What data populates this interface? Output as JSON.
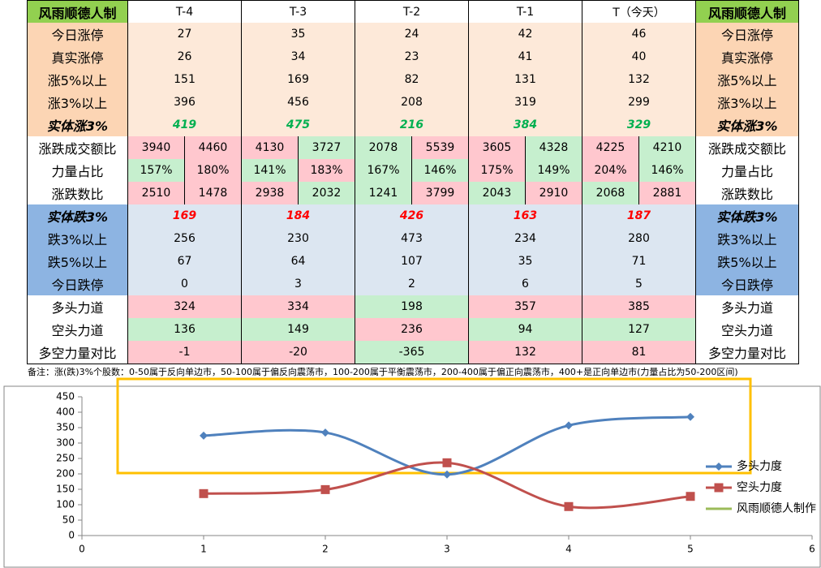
{
  "table": {
    "header": [
      "风雨顺德人制",
      "T-4",
      "T-3",
      "T-2",
      "T-1",
      "T（今天）",
      "风雨顺德人制"
    ],
    "header_fill": "#92d050",
    "rows": [
      {
        "label": "今日涨停",
        "label_fill": "#fcd5b4",
        "fill": "#fde9d9",
        "values": [
          27,
          35,
          24,
          42,
          46
        ]
      },
      {
        "label": "真实涨停",
        "label_fill": "#fcd5b4",
        "fill": "#fde9d9",
        "values": [
          26,
          34,
          23,
          41,
          40
        ]
      },
      {
        "label": "涨5%以上",
        "label_fill": "#fcd5b4",
        "fill": "#fde9d9",
        "values": [
          151,
          169,
          82,
          131,
          132
        ]
      },
      {
        "label": "涨3%以上",
        "label_fill": "#fcd5b4",
        "fill": "#fde9d9",
        "values": [
          396,
          456,
          208,
          319,
          299
        ]
      },
      {
        "label": "实体涨3%",
        "label_fill": "#fcd5b4",
        "fill": "#fde9d9",
        "text_color": "#00b050",
        "emphasis": true,
        "values": [
          419,
          475,
          216,
          384,
          329
        ]
      },
      {
        "label": "涨跌成交额比",
        "label_fill": "#ffffff",
        "values": [
          [
            3940,
            4460
          ],
          [
            4130,
            3727
          ],
          [
            2078,
            5539
          ],
          [
            3605,
            4328
          ],
          [
            4225,
            4210
          ]
        ],
        "colors": [
          [
            "#ffc7ce",
            "#ffc7ce"
          ],
          [
            "#ffc7ce",
            "#c6efce"
          ],
          [
            "#c6efce",
            "#ffc7ce"
          ],
          [
            "#ffc7ce",
            "#c6efce"
          ],
          [
            "#ffc7ce",
            "#c6efce"
          ]
        ]
      },
      {
        "label": "力量占比",
        "label_fill": "#ffffff",
        "values": [
          [
            "157%",
            "180%"
          ],
          [
            "141%",
            "183%"
          ],
          [
            "167%",
            "146%"
          ],
          [
            "175%",
            "149%"
          ],
          [
            "204%",
            "146%"
          ]
        ],
        "colors": [
          [
            "#c6efce",
            "#ffc7ce"
          ],
          [
            "#c6efce",
            "#ffc7ce"
          ],
          [
            "#c6efce",
            "#c6efce"
          ],
          [
            "#ffc7ce",
            "#c6efce"
          ],
          [
            "#ffc7ce",
            "#c6efce"
          ]
        ]
      },
      {
        "label": "涨跌数比",
        "label_fill": "#ffffff",
        "values": [
          [
            2510,
            1478
          ],
          [
            2938,
            2032
          ],
          [
            1241,
            3799
          ],
          [
            2043,
            2910
          ],
          [
            2068,
            2881
          ]
        ],
        "colors": [
          [
            "#ffc7ce",
            "#ffc7ce"
          ],
          [
            "#ffc7ce",
            "#c6efce"
          ],
          [
            "#c6efce",
            "#ffc7ce"
          ],
          [
            "#c6efce",
            "#ffc7ce"
          ],
          [
            "#c6efce",
            "#ffc7ce"
          ]
        ]
      },
      {
        "label": "实体跌3%",
        "label_fill": "#8db4e2",
        "fill": "#dce6f1",
        "text_color": "#ff0000",
        "emphasis": true,
        "values": [
          169,
          184,
          426,
          163,
          187
        ]
      },
      {
        "label": "跌3%以上",
        "label_fill": "#8db4e2",
        "fill": "#dce6f1",
        "values": [
          256,
          230,
          473,
          234,
          280
        ]
      },
      {
        "label": "跌5%以上",
        "label_fill": "#8db4e2",
        "fill": "#dce6f1",
        "values": [
          67,
          64,
          107,
          35,
          71
        ]
      },
      {
        "label": "今日跌停",
        "label_fill": "#8db4e2",
        "fill": "#dce6f1",
        "values": [
          0,
          3,
          2,
          6,
          5
        ]
      },
      {
        "label": "多头力道",
        "label_fill": "#ffffff",
        "values": [
          324,
          334,
          198,
          357,
          385
        ],
        "colors": [
          "#ffc7ce",
          "#ffc7ce",
          "#c6efce",
          "#ffc7ce",
          "#ffc7ce"
        ]
      },
      {
        "label": "空头力道",
        "label_fill": "#ffffff",
        "values": [
          136,
          149,
          236,
          94,
          127
        ],
        "colors": [
          "#c6efce",
          "#c6efce",
          "#ffc7ce",
          "#c6efce",
          "#c6efce"
        ]
      },
      {
        "label": "多空力量对比",
        "label_fill": "#ffffff",
        "values": [
          -1,
          -20,
          -365,
          132,
          81
        ],
        "colors": [
          "#ffc7ce",
          "#ffc7ce",
          "#c6efce",
          "#ffc7ce",
          "#ffc7ce"
        ]
      }
    ]
  },
  "note": "备注：涨(跌)3%个股数：0-50属于反向单边市，50-100属于偏反向震荡市，100-200属于平衡震荡市，200-400属于偏正向震荡市，400+是正向单边市(力量占比为50-200区间)",
  "chart_data": {
    "type": "line",
    "smooth": true,
    "grid": false,
    "legend": "right",
    "x": [
      1,
      2,
      3,
      4,
      5
    ],
    "xlim": [
      0,
      6
    ],
    "xticks": [
      0,
      1,
      2,
      3,
      4,
      5,
      6
    ],
    "ylim": [
      0,
      450
    ],
    "yticks": [
      0,
      50,
      100,
      150,
      200,
      250,
      300,
      350,
      400,
      450
    ],
    "series": [
      {
        "name": "多头力度",
        "color": "#4f81bd",
        "marker": "diamond",
        "values": [
          324,
          334,
          198,
          357,
          385
        ]
      },
      {
        "name": "空头力度",
        "color": "#c0504d",
        "marker": "square",
        "values": [
          136,
          149,
          236,
          94,
          127
        ]
      },
      {
        "name": "风雨顺德人制作",
        "color": "#9bbb59",
        "values": [
          null,
          null,
          null,
          null,
          null
        ]
      }
    ]
  }
}
